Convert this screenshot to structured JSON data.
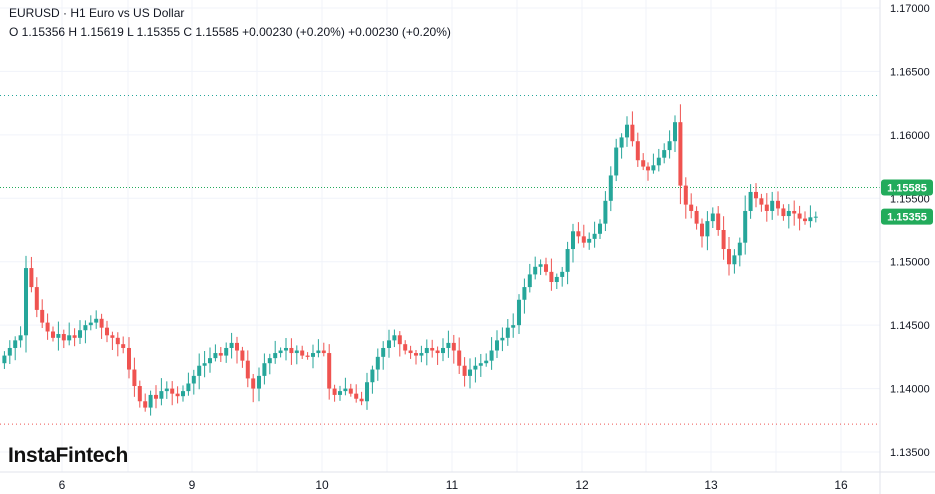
{
  "header": {
    "symbol_line": "EURUSD · H1 Euro vs US Dollar",
    "ohlc_line": "O 1.15356 H 1.15619 L 1.15355 C 1.15585 +0.00230 (+0.20%) +0.00230 (+0.20%)"
  },
  "brand": {
    "logo_text": "InstaFintech"
  },
  "colors": {
    "up": "#26a69a",
    "up_badge": "#22ab5b",
    "down": "#ef5350",
    "grid": "#f0f3fa",
    "axis_text": "#131722",
    "last_price_line": "#22ab5b",
    "high_line": "#26a69a",
    "low_line": "#ef5350"
  },
  "chart_data": {
    "type": "candlestick",
    "symbol": "EURUSD",
    "timeframe": "H1",
    "y_ticks": [
      1.17,
      1.165,
      1.16,
      1.155,
      1.15,
      1.145,
      1.14,
      1.135
    ],
    "y_tick_labels": [
      "1.17000",
      "1.16500",
      "1.16000",
      "1.15500",
      "1.15000",
      "1.14500",
      "1.14000",
      "1.13500"
    ],
    "ylim": [
      1.1335,
      1.1715
    ],
    "x_ticks": [
      "6",
      "9",
      "10",
      "11",
      "12",
      "13",
      "16"
    ],
    "reference_lines": {
      "high": 1.1631,
      "low": 1.1372,
      "last_price": 1.15585
    },
    "price_badges": [
      {
        "label": "1.15585",
        "value": 1.15585,
        "type": "last"
      },
      {
        "label": "1.15355",
        "value": 1.15355,
        "type": "ref"
      }
    ],
    "session_anchors": [
      {
        "label": "6",
        "closes": [
          1.142,
          1.1426,
          1.1432,
          1.1438,
          1.1442,
          1.1495,
          1.148,
          1.1462,
          1.1452,
          1.1445,
          1.144,
          1.1443,
          1.1438,
          1.1442,
          1.144,
          1.1446,
          1.145,
          1.1452,
          1.1455,
          1.1448,
          1.1442,
          1.144,
          1.1435,
          1.1432
        ]
      },
      {
        "label": "9",
        "closes": [
          1.1415,
          1.1402,
          1.139,
          1.1385,
          1.1395,
          1.1392,
          1.1398,
          1.14,
          1.1396,
          1.1394,
          1.1398,
          1.1404,
          1.141,
          1.1418,
          1.142,
          1.1424,
          1.1428,
          1.1426,
          1.1432,
          1.1436,
          1.143,
          1.1422,
          1.1408,
          1.14
        ]
      },
      {
        "label": "10",
        "closes": [
          1.141,
          1.142,
          1.1424,
          1.1428,
          1.143,
          1.1432,
          1.1428,
          1.143,
          1.1426,
          1.1425,
          1.1428,
          1.143,
          1.1428,
          1.14,
          1.1395,
          1.1398,
          1.14,
          1.1396,
          1.1392,
          1.139,
          1.1405,
          1.1415,
          1.1425,
          1.1432
        ]
      },
      {
        "label": "11",
        "closes": [
          1.1438,
          1.1442,
          1.1435,
          1.143,
          1.1428,
          1.1426,
          1.1428,
          1.1432,
          1.143,
          1.1428,
          1.1432,
          1.1436,
          1.143,
          1.1418,
          1.141,
          1.1415,
          1.1418,
          1.142,
          1.1422,
          1.143,
          1.1438,
          1.144,
          1.1448,
          1.145
        ]
      },
      {
        "label": "12",
        "closes": [
          1.147,
          1.148,
          1.149,
          1.1496,
          1.1498,
          1.1492,
          1.1484,
          1.1488,
          1.1492,
          1.151,
          1.1524,
          1.152,
          1.1515,
          1.1518,
          1.1522,
          1.153,
          1.1548,
          1.1568,
          1.159,
          1.1598,
          1.1608,
          1.1595,
          1.158,
          1.1575
        ]
      },
      {
        "label": "13",
        "closes": [
          1.1572,
          1.1576,
          1.1582,
          1.1588,
          1.1595,
          1.161,
          1.156,
          1.1545,
          1.154,
          1.153,
          1.152,
          1.1532,
          1.1538,
          1.1525,
          1.151,
          1.1498,
          1.1505,
          1.1515,
          1.154,
          1.1555,
          1.155,
          1.1545,
          1.154,
          1.1548
        ]
      },
      {
        "label": "16",
        "closes": [
          1.1542,
          1.1536,
          1.154,
          1.1538,
          1.1534,
          1.1532,
          1.1535,
          1.15355
        ]
      }
    ]
  }
}
